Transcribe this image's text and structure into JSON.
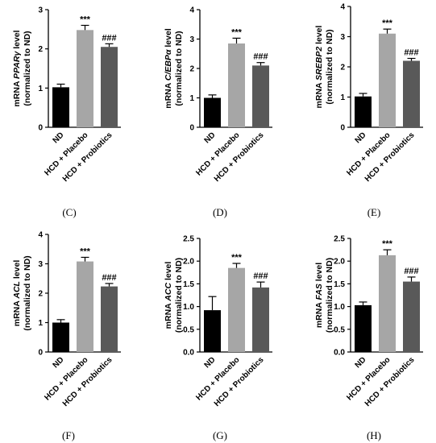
{
  "chart_data": [
    {
      "id": "C",
      "type": "bar",
      "panel_label": "(C)",
      "ylabel_prefix": "mRNA ",
      "gene": "PPARγ",
      "ylabel_suffix": " level",
      "ylabel_line2": "(normalized to ND)",
      "ylim": [
        0,
        3
      ],
      "yticks": [
        "0",
        "1",
        "2",
        "3"
      ],
      "categories": [
        "ND",
        "HCD + Placebo",
        "HCD + Probiotics"
      ],
      "values": [
        1.02,
        2.48,
        2.05
      ],
      "errors": [
        0.08,
        0.12,
        0.08
      ],
      "colors": [
        "#000000",
        "#a6a6a6",
        "#595959"
      ],
      "annotations": [
        "",
        "***",
        "###"
      ]
    },
    {
      "id": "D",
      "type": "bar",
      "panel_label": "(D)",
      "ylabel_prefix": "mRNA ",
      "gene": "C/EBPα",
      "ylabel_suffix": " level",
      "ylabel_line2": "(normalized to ND)",
      "ylim": [
        0,
        4
      ],
      "yticks": [
        "0",
        "1",
        "2",
        "3",
        "4"
      ],
      "categories": [
        "ND",
        "HCD + Placebo",
        "HCD + Probiotics"
      ],
      "values": [
        1.0,
        2.85,
        2.1
      ],
      "errors": [
        0.1,
        0.18,
        0.1
      ],
      "colors": [
        "#000000",
        "#a6a6a6",
        "#595959"
      ],
      "annotations": [
        "",
        "***",
        "###"
      ]
    },
    {
      "id": "E",
      "type": "bar",
      "panel_label": "(E)",
      "ylabel_prefix": "mRNA ",
      "gene": "SREBP2",
      "ylabel_suffix": " level",
      "ylabel_line2": "(normalized to ND)",
      "ylim": [
        0,
        4
      ],
      "yticks": [
        "0",
        "1",
        "2",
        "3",
        "4"
      ],
      "categories": [
        "ND",
        "HCD + Placebo",
        "HCD + Probiotics"
      ],
      "values": [
        1.02,
        3.1,
        2.2
      ],
      "errors": [
        0.1,
        0.15,
        0.08
      ],
      "colors": [
        "#000000",
        "#a6a6a6",
        "#595959"
      ],
      "annotations": [
        "",
        "***",
        "###"
      ]
    },
    {
      "id": "F",
      "type": "bar",
      "panel_label": "(F)",
      "ylabel_prefix": "mRNA ",
      "gene": "ACL",
      "ylabel_suffix": " level",
      "ylabel_line2": "(normalized to ND)",
      "ylim": [
        0,
        4
      ],
      "yticks": [
        "0",
        "1",
        "2",
        "3",
        "4"
      ],
      "categories": [
        "ND",
        "HCD + Placebo",
        "HCD + Probiotics"
      ],
      "values": [
        1.0,
        3.08,
        2.23
      ],
      "errors": [
        0.1,
        0.14,
        0.1
      ],
      "colors": [
        "#000000",
        "#a6a6a6",
        "#595959"
      ],
      "annotations": [
        "",
        "***",
        "###"
      ]
    },
    {
      "id": "G",
      "type": "bar",
      "panel_label": "(G)",
      "ylabel_prefix": "mRNA ",
      "gene": "ACC",
      "ylabel_suffix": " level",
      "ylabel_line2": "(normalized to ND)",
      "ylim": [
        0,
        2.5
      ],
      "yticks": [
        "0.0",
        "0.5",
        "1.0",
        "1.5",
        "2.0",
        "2.5"
      ],
      "categories": [
        "ND",
        "HCD + Placebo",
        "HCD + Probiotics"
      ],
      "values": [
        0.92,
        1.85,
        1.42
      ],
      "errors": [
        0.3,
        0.1,
        0.12
      ],
      "colors": [
        "#000000",
        "#a6a6a6",
        "#595959"
      ],
      "annotations": [
        "",
        "***",
        "###"
      ]
    },
    {
      "id": "H",
      "type": "bar",
      "panel_label": "(H)",
      "ylabel_prefix": "mRNA ",
      "gene": "FAS",
      "ylabel_suffix": " level",
      "ylabel_line2": "(normalized to ND)",
      "ylim": [
        0,
        2.5
      ],
      "yticks": [
        "0.0",
        "0.5",
        "1.0",
        "1.5",
        "2.0",
        "2.5"
      ],
      "categories": [
        "ND",
        "HCD + Placebo",
        "HCD + Probiotics"
      ],
      "values": [
        1.03,
        2.13,
        1.55
      ],
      "errors": [
        0.07,
        0.12,
        0.1
      ],
      "colors": [
        "#000000",
        "#a6a6a6",
        "#595959"
      ],
      "annotations": [
        "",
        "***",
        "###"
      ]
    }
  ]
}
